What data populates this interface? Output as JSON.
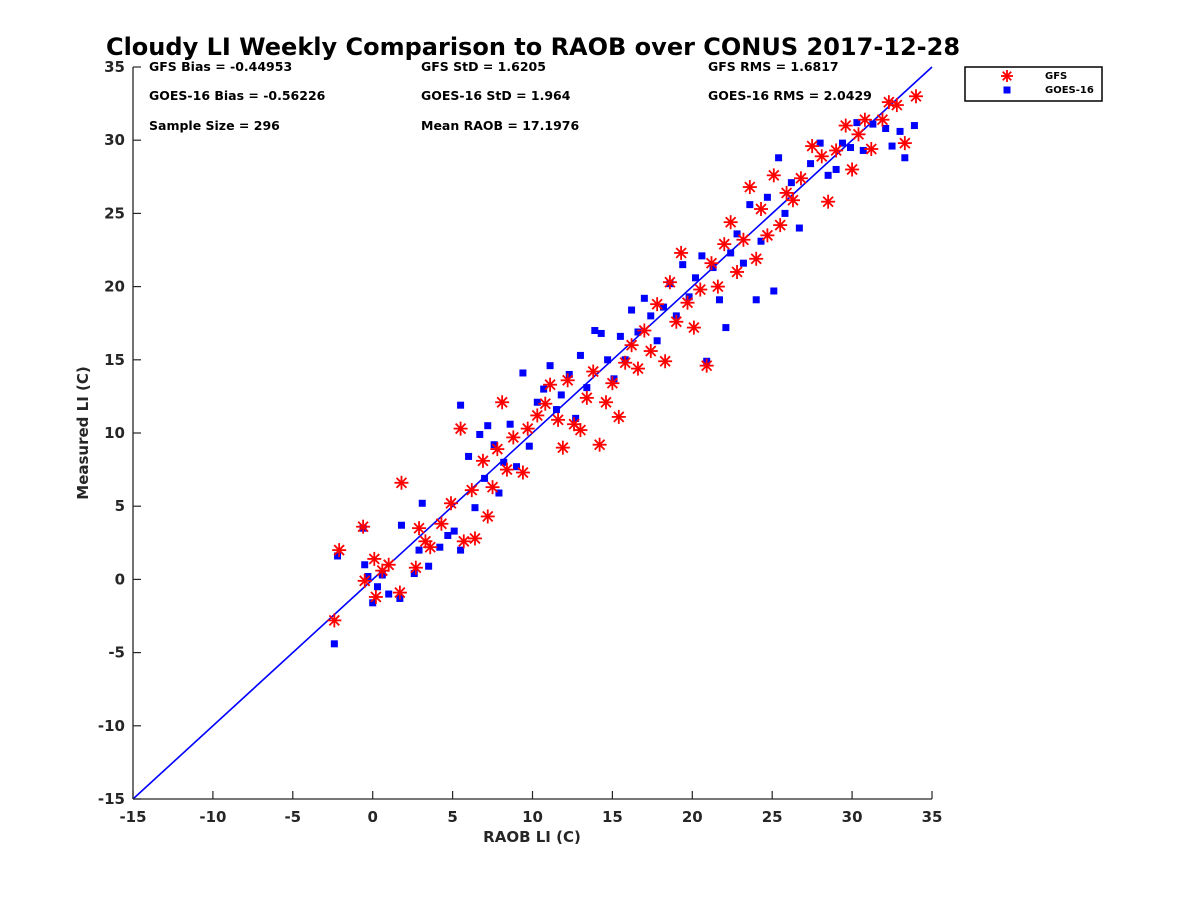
{
  "chart_data": {
    "type": "scatter",
    "title": "Cloudy LI Weekly Comparison to RAOB over CONUS 2017-12-28",
    "xlabel": "RAOB LI (C)",
    "ylabel": "Measured LI (C)",
    "xlim": [
      -15,
      35
    ],
    "ylim": [
      -15,
      35
    ],
    "xticks": [
      -15,
      -10,
      -5,
      0,
      5,
      10,
      15,
      20,
      25,
      30,
      35
    ],
    "yticks": [
      -15,
      -10,
      -5,
      0,
      5,
      10,
      15,
      20,
      25,
      30,
      35
    ],
    "grid": false,
    "legend_position": "top-right outside",
    "stats": {
      "gfs_bias": "GFS Bias = -0.44953",
      "gfs_std": "GFS StD = 1.6205",
      "gfs_rms": "GFS RMS = 1.6817",
      "goes_bias": "GOES-16 Bias = -0.56226",
      "goes_std": "GOES-16 StD = 1.964",
      "goes_rms": "GOES-16 RMS = 2.0429",
      "sample_size": "Sample Size = 296",
      "mean_raob": "Mean RAOB = 17.1976"
    },
    "reference_line": {
      "x": [
        -15,
        35
      ],
      "y": [
        -15,
        35
      ],
      "color": "#0000ff"
    },
    "series": [
      {
        "name": "GFS",
        "marker": "asterisk",
        "color": "#ff0000",
        "points": [
          [
            -2.4,
            -2.8
          ],
          [
            -2.1,
            2.0
          ],
          [
            -0.6,
            3.6
          ],
          [
            -0.5,
            -0.1
          ],
          [
            0.1,
            1.4
          ],
          [
            0.2,
            -1.2
          ],
          [
            0.6,
            0.6
          ],
          [
            1.0,
            1.0
          ],
          [
            1.7,
            -0.9
          ],
          [
            1.8,
            6.6
          ],
          [
            2.7,
            0.8
          ],
          [
            2.9,
            3.5
          ],
          [
            3.3,
            2.6
          ],
          [
            3.6,
            2.2
          ],
          [
            4.3,
            3.8
          ],
          [
            4.9,
            5.2
          ],
          [
            5.5,
            10.3
          ],
          [
            5.7,
            2.6
          ],
          [
            6.2,
            6.1
          ],
          [
            6.4,
            2.8
          ],
          [
            6.9,
            8.1
          ],
          [
            7.2,
            4.3
          ],
          [
            7.5,
            6.3
          ],
          [
            7.8,
            8.9
          ],
          [
            8.1,
            12.1
          ],
          [
            8.4,
            7.5
          ],
          [
            8.8,
            9.7
          ],
          [
            9.4,
            7.3
          ],
          [
            9.7,
            10.3
          ],
          [
            10.3,
            11.2
          ],
          [
            10.8,
            12.0
          ],
          [
            11.1,
            13.3
          ],
          [
            11.6,
            10.9
          ],
          [
            11.9,
            9.0
          ],
          [
            12.2,
            13.6
          ],
          [
            12.6,
            10.6
          ],
          [
            13.0,
            10.2
          ],
          [
            13.4,
            12.4
          ],
          [
            13.8,
            14.2
          ],
          [
            14.2,
            9.2
          ],
          [
            14.6,
            12.1
          ],
          [
            15.0,
            13.4
          ],
          [
            15.4,
            11.1
          ],
          [
            15.8,
            14.8
          ],
          [
            16.2,
            16.0
          ],
          [
            16.6,
            14.4
          ],
          [
            17.0,
            17.0
          ],
          [
            17.4,
            15.6
          ],
          [
            17.8,
            18.8
          ],
          [
            18.3,
            14.9
          ],
          [
            18.6,
            20.3
          ],
          [
            19.0,
            17.6
          ],
          [
            19.3,
            22.3
          ],
          [
            19.7,
            18.9
          ],
          [
            20.1,
            17.2
          ],
          [
            20.5,
            19.8
          ],
          [
            20.9,
            14.6
          ],
          [
            21.2,
            21.6
          ],
          [
            21.6,
            20.0
          ],
          [
            22.0,
            22.9
          ],
          [
            22.4,
            24.4
          ],
          [
            22.8,
            21.0
          ],
          [
            23.2,
            23.2
          ],
          [
            23.6,
            26.8
          ],
          [
            24.0,
            21.9
          ],
          [
            24.3,
            25.3
          ],
          [
            24.7,
            23.5
          ],
          [
            25.1,
            27.6
          ],
          [
            25.5,
            24.2
          ],
          [
            25.9,
            26.4
          ],
          [
            26.3,
            25.9
          ],
          [
            26.8,
            27.4
          ],
          [
            27.5,
            29.6
          ],
          [
            28.1,
            28.9
          ],
          [
            28.5,
            25.8
          ],
          [
            29.0,
            29.3
          ],
          [
            29.6,
            31.0
          ],
          [
            30.0,
            28.0
          ],
          [
            30.4,
            30.4
          ],
          [
            30.8,
            31.4
          ],
          [
            31.2,
            29.4
          ],
          [
            31.9,
            31.4
          ],
          [
            32.3,
            32.6
          ],
          [
            32.8,
            32.4
          ],
          [
            33.3,
            29.8
          ],
          [
            34.0,
            33.0
          ]
        ]
      },
      {
        "name": "GOES-16",
        "marker": "square",
        "color": "#0000ff",
        "points": [
          [
            -2.4,
            -4.4
          ],
          [
            -2.2,
            1.6
          ],
          [
            -0.6,
            3.5
          ],
          [
            -0.5,
            1.0
          ],
          [
            -0.3,
            0.2
          ],
          [
            0.0,
            -1.6
          ],
          [
            0.3,
            -0.5
          ],
          [
            0.6,
            0.3
          ],
          [
            1.0,
            -1.0
          ],
          [
            1.7,
            -1.3
          ],
          [
            1.8,
            3.7
          ],
          [
            2.6,
            0.4
          ],
          [
            2.9,
            2.0
          ],
          [
            3.1,
            5.2
          ],
          [
            3.5,
            0.9
          ],
          [
            4.2,
            2.2
          ],
          [
            4.7,
            3.0
          ],
          [
            5.1,
            3.3
          ],
          [
            5.5,
            11.9
          ],
          [
            5.5,
            2.0
          ],
          [
            6.0,
            8.4
          ],
          [
            6.4,
            4.9
          ],
          [
            6.7,
            9.9
          ],
          [
            7.0,
            6.9
          ],
          [
            7.2,
            10.5
          ],
          [
            7.6,
            9.2
          ],
          [
            7.9,
            5.9
          ],
          [
            8.2,
            8.0
          ],
          [
            8.6,
            10.6
          ],
          [
            9.0,
            7.7
          ],
          [
            9.4,
            14.1
          ],
          [
            9.8,
            9.1
          ],
          [
            10.3,
            12.1
          ],
          [
            10.7,
            13.0
          ],
          [
            11.1,
            14.6
          ],
          [
            11.5,
            11.6
          ],
          [
            11.8,
            12.6
          ],
          [
            12.3,
            14.0
          ],
          [
            12.7,
            11.0
          ],
          [
            13.0,
            15.3
          ],
          [
            13.4,
            13.1
          ],
          [
            13.9,
            17.0
          ],
          [
            14.3,
            16.8
          ],
          [
            14.7,
            15.0
          ],
          [
            15.1,
            13.7
          ],
          [
            15.5,
            16.6
          ],
          [
            15.8,
            15.0
          ],
          [
            16.2,
            18.4
          ],
          [
            16.6,
            16.9
          ],
          [
            17.0,
            19.2
          ],
          [
            17.4,
            18.0
          ],
          [
            17.8,
            16.3
          ],
          [
            18.2,
            18.6
          ],
          [
            18.6,
            20.2
          ],
          [
            19.0,
            18.0
          ],
          [
            19.4,
            21.5
          ],
          [
            19.8,
            19.3
          ],
          [
            20.2,
            20.6
          ],
          [
            20.6,
            22.1
          ],
          [
            20.9,
            14.9
          ],
          [
            21.3,
            21.3
          ],
          [
            21.7,
            19.1
          ],
          [
            22.1,
            17.2
          ],
          [
            22.4,
            22.3
          ],
          [
            22.8,
            23.6
          ],
          [
            23.2,
            21.6
          ],
          [
            23.6,
            25.6
          ],
          [
            24.0,
            19.1
          ],
          [
            24.3,
            23.1
          ],
          [
            24.7,
            26.1
          ],
          [
            25.1,
            19.7
          ],
          [
            25.4,
            28.8
          ],
          [
            25.8,
            25.0
          ],
          [
            26.2,
            27.1
          ],
          [
            26.7,
            24.0
          ],
          [
            27.4,
            28.4
          ],
          [
            28.0,
            29.8
          ],
          [
            28.5,
            27.6
          ],
          [
            29.0,
            28.0
          ],
          [
            29.4,
            29.8
          ],
          [
            29.9,
            29.5
          ],
          [
            30.3,
            31.2
          ],
          [
            30.7,
            29.3
          ],
          [
            31.3,
            31.1
          ],
          [
            32.1,
            30.8
          ],
          [
            32.5,
            29.6
          ],
          [
            33.0,
            30.6
          ],
          [
            33.3,
            28.8
          ],
          [
            33.9,
            31.0
          ]
        ]
      }
    ]
  }
}
